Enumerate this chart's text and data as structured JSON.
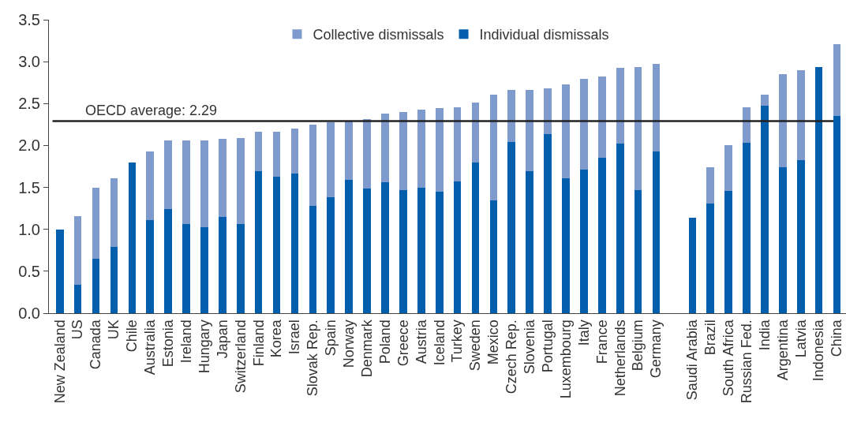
{
  "chart_data": {
    "type": "bar",
    "stacked": true,
    "categories": [
      "New Zealand",
      "US",
      "Canada",
      "UK",
      "Chile",
      "Australia",
      "Estonia",
      "Ireland",
      "Hungary",
      "Japan",
      "Switzerland",
      "Finland",
      "Korea",
      "Israel",
      "Slovak Rep.",
      "Spain",
      "Norway",
      "Denmark",
      "Poland",
      "Greece",
      "Austria",
      "Iceland",
      "Turkey",
      "Sweden",
      "Mexico",
      "Czech Rep.",
      "Slovenia",
      "Portugal",
      "Luxembourg",
      "Italy",
      "France",
      "Netherlands",
      "Belgium",
      "Germany",
      null,
      "Saudi Arabia",
      "Brazil",
      "South Africa",
      "Russian Fed.",
      "India",
      "Argentina",
      "Latvia",
      "Indonesia",
      "China"
    ],
    "series": [
      {
        "name": "Individual dismissals",
        "color": "#005eac",
        "values": [
          1.0,
          0.34,
          0.65,
          0.79,
          1.8,
          1.11,
          1.24,
          1.06,
          1.03,
          1.15,
          1.06,
          1.69,
          1.63,
          1.67,
          1.28,
          1.38,
          1.59,
          1.49,
          1.56,
          1.47,
          1.5,
          1.45,
          1.57,
          1.8,
          1.35,
          2.04,
          1.69,
          2.14,
          1.61,
          1.71,
          1.85,
          2.02,
          1.47,
          1.93,
          null,
          1.14,
          1.31,
          1.46,
          2.03,
          2.47,
          1.74,
          1.83,
          2.94,
          2.35
        ]
      },
      {
        "name": "Collective dismissals",
        "color": "#7f9bcd",
        "values": [
          0,
          0.82,
          0.85,
          0.82,
          0,
          0.82,
          0.82,
          1.0,
          1.03,
          0.93,
          1.03,
          0.47,
          0.53,
          0.53,
          0.97,
          0.9,
          0.71,
          0.82,
          0.82,
          0.93,
          0.93,
          1.0,
          0.89,
          0.71,
          1.26,
          0.62,
          0.97,
          0.54,
          1.12,
          1.08,
          0.97,
          0.91,
          1.47,
          1.04,
          null,
          0,
          0.43,
          0.54,
          0.43,
          0.14,
          1.11,
          1.07,
          0,
          0.86
        ]
      }
    ],
    "ylim": [
      0,
      3.5
    ],
    "yticks": [
      {
        "value": 0,
        "label": "0.0"
      },
      0.5,
      {
        "value": 1,
        "label": "1.0"
      },
      1.5,
      {
        "value": 2,
        "label": "2.0"
      },
      2.5,
      {
        "value": 3,
        "label": "3.0"
      },
      3.5
    ],
    "ref_lines": [
      {
        "axis": "y",
        "value": 2.29,
        "label": "OECD average: 2.29",
        "color": "#222222"
      }
    ],
    "legend": "top"
  }
}
